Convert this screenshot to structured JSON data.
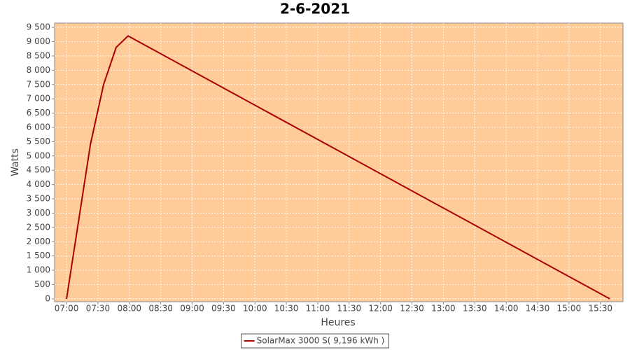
{
  "chart_data": {
    "type": "line",
    "title": "2-6-2021",
    "x_label": "Heures",
    "y_label": "Watts",
    "x": [
      7.0,
      7.38,
      7.59,
      7.79,
      7.98,
      15.65
    ],
    "series": [
      {
        "name": "SolarMax 3000 S( 9,196 kWh )",
        "color": "#aa0000",
        "values": [
          0,
          5400,
          7500,
          8800,
          9200,
          0
        ]
      }
    ],
    "xlim": [
      6.81,
      15.86
    ],
    "xticks": [
      {
        "value": 7,
        "label": "07:00"
      },
      {
        "value": 7.5,
        "label": "07:30"
      },
      {
        "value": 8,
        "label": "08:00"
      },
      {
        "value": 8.5,
        "label": "08:30"
      },
      {
        "value": 9,
        "label": "09:00"
      },
      {
        "value": 9.5,
        "label": "09:30"
      },
      {
        "value": 10,
        "label": "10:00"
      },
      {
        "value": 10.5,
        "label": "10:30"
      },
      {
        "value": 11,
        "label": "11:00"
      },
      {
        "value": 11.5,
        "label": "11:30"
      },
      {
        "value": 12,
        "label": "12:00"
      },
      {
        "value": 12.5,
        "label": "12:30"
      },
      {
        "value": 13,
        "label": "13:00"
      },
      {
        "value": 13.5,
        "label": "13:30"
      },
      {
        "value": 14,
        "label": "14:00"
      },
      {
        "value": 14.5,
        "label": "14:30"
      },
      {
        "value": 15,
        "label": "15:00"
      },
      {
        "value": 15.5,
        "label": "15:30"
      }
    ],
    "ylim": [
      -100,
      9650
    ],
    "yticks": [
      0,
      500,
      {
        "value": 1000,
        "label": "1 000"
      },
      {
        "value": 1500,
        "label": "1 500"
      },
      {
        "value": 2000,
        "label": "2 000"
      },
      {
        "value": 2500,
        "label": "2 500"
      },
      {
        "value": 3000,
        "label": "3 000"
      },
      {
        "value": 3500,
        "label": "3 500"
      },
      {
        "value": 4000,
        "label": "4 000"
      },
      {
        "value": 4500,
        "label": "4 500"
      },
      {
        "value": 5000,
        "label": "5 000"
      },
      {
        "value": 5500,
        "label": "5 500"
      },
      {
        "value": 6000,
        "label": "6 000"
      },
      {
        "value": 6500,
        "label": "6 500"
      },
      {
        "value": 7000,
        "label": "7 000"
      },
      {
        "value": 7500,
        "label": "7 500"
      },
      {
        "value": 8000,
        "label": "8 000"
      },
      {
        "value": 8500,
        "label": "8 500"
      },
      {
        "value": 9000,
        "label": "9 000"
      },
      {
        "value": 9500,
        "label": "9 500"
      }
    ],
    "grid": true,
    "plot_background": "#ffcc99",
    "legend": "bottom"
  }
}
